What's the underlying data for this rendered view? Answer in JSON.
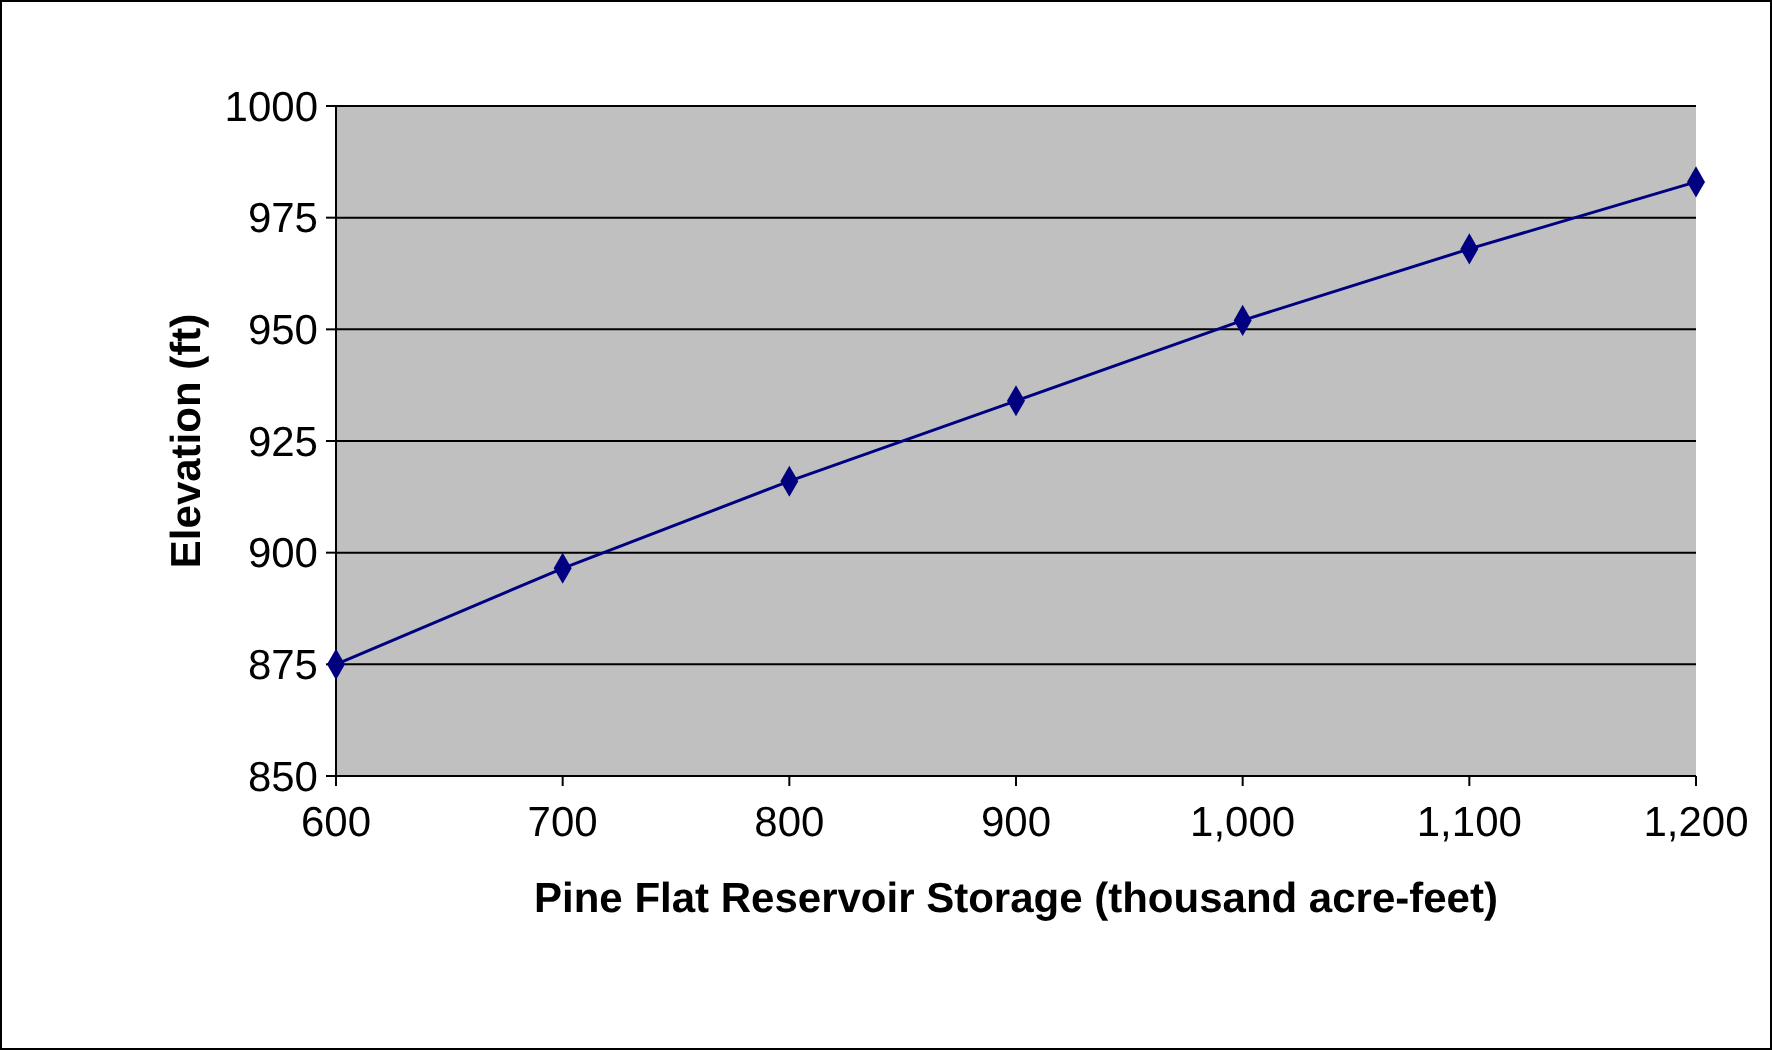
{
  "chart_data": {
    "type": "line",
    "xlabel": "Pine Flat Reservoir Storage (thousand acre-feet)",
    "ylabel": "Elevation (ft)",
    "x": [
      600,
      700,
      800,
      900,
      1000,
      1100,
      1200
    ],
    "series": [
      {
        "color": "#000080",
        "values": [
          875,
          896.5,
          916,
          934,
          952,
          968,
          983
        ]
      }
    ],
    "xlim": [
      600,
      1200
    ],
    "xticks": [
      600,
      700,
      800,
      900,
      {
        "value": 1000,
        "label": "1,000"
      },
      {
        "value": 1100,
        "label": "1,100"
      },
      {
        "value": 1200,
        "label": "1,200"
      }
    ],
    "ylim": [
      850,
      1000
    ],
    "yticks": [
      850,
      875,
      900,
      925,
      950,
      975,
      1000
    ],
    "grid": "y",
    "marker": "diamond",
    "line_style": "solid"
  }
}
